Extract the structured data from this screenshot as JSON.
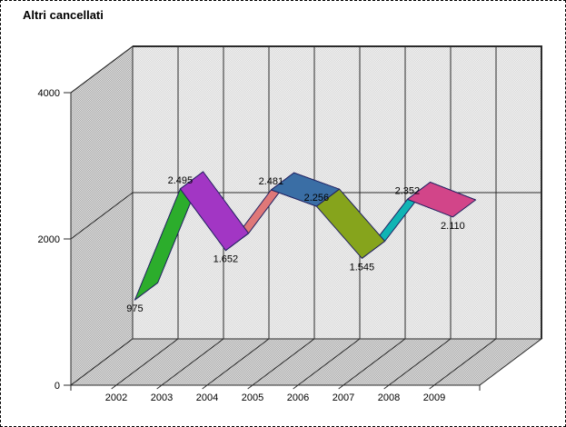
{
  "title": "Altri cancellati",
  "chart_data": {
    "type": "line",
    "variant": "3d-ribbon",
    "title": "Altri cancellati",
    "categories": [
      "2002",
      "2003",
      "2004",
      "2005",
      "2006",
      "2007",
      "2008",
      "2009"
    ],
    "series": [
      {
        "name": "Altri cancellati",
        "values": [
          975,
          2495,
          1652,
          2481,
          2256,
          1545,
          2352,
          2110
        ]
      }
    ],
    "values": [
      975,
      2495,
      1652,
      2481,
      2256,
      1545,
      2352,
      2110
    ],
    "value_labels": [
      "975",
      "2.495",
      "1.652",
      "2.481",
      "2.256",
      "1.545",
      "2.352",
      "2.110"
    ],
    "xlabel": "",
    "ylabel": "",
    "ylim": [
      0,
      4000
    ],
    "yticks": [
      0,
      2000,
      4000
    ],
    "ytick_labels": [
      "0",
      "2000",
      "4000"
    ],
    "grid": true,
    "legend_position": "none",
    "number_format": "thousands-dot",
    "segment_colors": [
      "#2cad2c",
      "#a236c4",
      "#df7878",
      "#3a6ea5",
      "#86a41c",
      "#10b4b4",
      "#d24589"
    ]
  },
  "colors": {
    "background": "#ffffff",
    "back_wall_checker": [
      "#f3f3f3",
      "#d7d7d7"
    ],
    "side_wall_checker": [
      "#e2e2e2",
      "#a8a8a8"
    ],
    "ribbon_outline": "#202060",
    "grid_line": "#2b2b2b",
    "text": "#000000",
    "border": "#000000"
  }
}
